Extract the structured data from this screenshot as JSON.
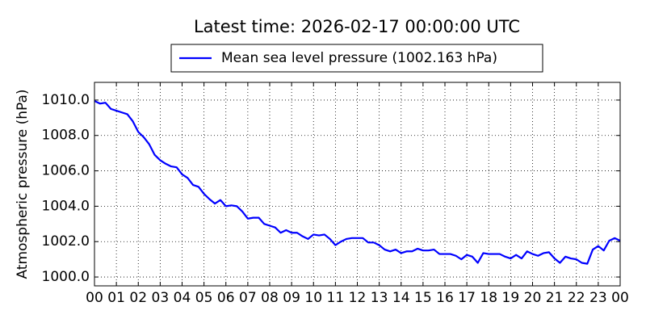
{
  "chart_data": {
    "type": "line",
    "title": "Latest time: 2026-02-17 00:00:00 UTC",
    "y_label": "Atmospheric pressure (hPa)",
    "x": [
      0,
      0.25,
      0.5,
      0.75,
      1,
      1.25,
      1.5,
      1.75,
      2,
      2.25,
      2.5,
      2.75,
      3,
      3.25,
      3.5,
      3.75,
      4,
      4.25,
      4.5,
      4.75,
      5,
      5.25,
      5.5,
      5.75,
      6,
      6.25,
      6.5,
      6.75,
      7,
      7.25,
      7.5,
      7.75,
      8,
      8.25,
      8.5,
      8.75,
      9,
      9.25,
      9.5,
      9.75,
      10,
      10.25,
      10.5,
      10.75,
      11,
      11.25,
      11.5,
      11.75,
      12,
      12.25,
      12.5,
      12.75,
      13,
      13.25,
      13.5,
      13.75,
      14,
      14.25,
      14.5,
      14.75,
      15,
      15.25,
      15.5,
      15.75,
      16,
      16.25,
      16.5,
      16.75,
      17,
      17.25,
      17.5,
      17.75,
      18,
      18.25,
      18.5,
      18.75,
      19,
      19.25,
      19.5,
      19.75,
      20,
      20.25,
      20.5,
      20.75,
      21,
      21.25,
      21.5,
      21.75,
      22,
      22.25,
      22.5,
      22.75,
      23,
      23.25,
      23.5,
      23.75,
      24
    ],
    "series": [
      {
        "name": "Mean sea level pressure (1002.163 hPa)",
        "color": "#0000ff",
        "values": [
          1009.95,
          1009.8,
          1009.85,
          1009.5,
          1009.4,
          1009.3,
          1009.2,
          1008.8,
          1008.2,
          1007.9,
          1007.5,
          1006.9,
          1006.6,
          1006.4,
          1006.25,
          1006.2,
          1005.8,
          1005.6,
          1005.2,
          1005.1,
          1004.7,
          1004.4,
          1004.15,
          1004.35,
          1004.0,
          1004.05,
          1004.0,
          1003.7,
          1003.3,
          1003.35,
          1003.35,
          1003.0,
          1002.9,
          1002.8,
          1002.5,
          1002.65,
          1002.5,
          1002.5,
          1002.3,
          1002.15,
          1002.4,
          1002.35,
          1002.4,
          1002.15,
          1001.8,
          1002.0,
          1002.15,
          1002.2,
          1002.2,
          1002.2,
          1001.95,
          1001.95,
          1001.8,
          1001.55,
          1001.45,
          1001.55,
          1001.35,
          1001.45,
          1001.45,
          1001.6,
          1001.5,
          1001.5,
          1001.55,
          1001.3,
          1001.3,
          1001.3,
          1001.2,
          1001.0,
          1001.25,
          1001.15,
          1000.8,
          1001.35,
          1001.3,
          1001.3,
          1001.3,
          1001.15,
          1001.05,
          1001.25,
          1001.05,
          1001.45,
          1001.3,
          1001.2,
          1001.35,
          1001.4,
          1001.05,
          1000.8,
          1001.15,
          1001.05,
          1001.0,
          1000.8,
          1000.75,
          1001.55,
          1001.75,
          1001.5,
          1002.05,
          1002.2,
          1002.05
        ]
      }
    ],
    "xlim": [
      0,
      24
    ],
    "xticks": [
      {
        "value": 0,
        "label": "00"
      },
      {
        "value": 1,
        "label": "01"
      },
      {
        "value": 2,
        "label": "02"
      },
      {
        "value": 3,
        "label": "03"
      },
      {
        "value": 4,
        "label": "04"
      },
      {
        "value": 5,
        "label": "05"
      },
      {
        "value": 6,
        "label": "06"
      },
      {
        "value": 7,
        "label": "07"
      },
      {
        "value": 8,
        "label": "08"
      },
      {
        "value": 9,
        "label": "09"
      },
      {
        "value": 10,
        "label": "10"
      },
      {
        "value": 11,
        "label": "11"
      },
      {
        "value": 12,
        "label": "12"
      },
      {
        "value": 13,
        "label": "13"
      },
      {
        "value": 14,
        "label": "14"
      },
      {
        "value": 15,
        "label": "15"
      },
      {
        "value": 16,
        "label": "16"
      },
      {
        "value": 17,
        "label": "17"
      },
      {
        "value": 18,
        "label": "18"
      },
      {
        "value": 19,
        "label": "19"
      },
      {
        "value": 20,
        "label": "20"
      },
      {
        "value": 21,
        "label": "21"
      },
      {
        "value": 22,
        "label": "22"
      },
      {
        "value": 23,
        "label": "23"
      },
      {
        "value": 24,
        "label": "00"
      }
    ],
    "ylim": [
      999.5,
      1011
    ],
    "yticks": [
      {
        "value": 1000,
        "label": "1000.0"
      },
      {
        "value": 1002,
        "label": "1002.0"
      },
      {
        "value": 1004,
        "label": "1004.0"
      },
      {
        "value": 1006,
        "label": "1006.0"
      },
      {
        "value": 1008,
        "label": "1008.0"
      },
      {
        "value": 1010,
        "label": "1010.0"
      }
    ],
    "grid": true
  }
}
